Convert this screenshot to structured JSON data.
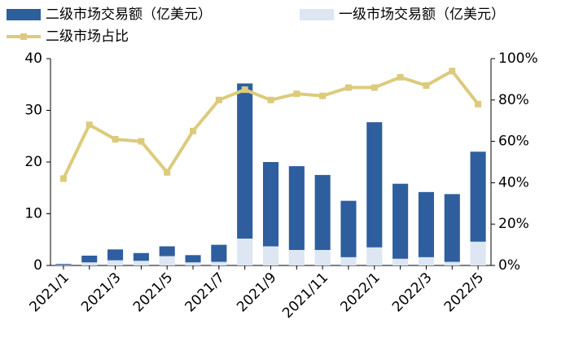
{
  "chart_data": {
    "type": "bar_line",
    "categories": [
      "2021/1",
      null,
      "2021/3",
      null,
      "2021/5",
      null,
      "2021/7",
      null,
      "2021/9",
      null,
      "2021/11",
      null,
      "2022/1",
      null,
      "2022/3",
      null,
      "2022/5"
    ],
    "series": [
      {
        "name": "二级市场交易额（亿美元）",
        "type": "bar",
        "color": "#2e5e9e",
        "values": [
          0.2,
          1.3,
          2.1,
          1.5,
          1.9,
          1.4,
          3.3,
          30.0,
          16.3,
          16.2,
          14.5,
          10.9,
          24.2,
          14.5,
          12.6,
          13.1,
          17.4
        ]
      },
      {
        "name": "一级市场交易额（亿美元）",
        "type": "bar",
        "color": "#dde6f2",
        "values": [
          0.1,
          0.6,
          1.0,
          0.9,
          1.8,
          0.6,
          0.7,
          5.2,
          3.7,
          3.0,
          3.0,
          1.6,
          3.5,
          1.3,
          1.6,
          0.7,
          4.6
        ]
      },
      {
        "name": "二级市场占比",
        "type": "line",
        "axis": "y2",
        "color": "#dccb7c",
        "values": [
          42,
          68,
          61,
          60,
          45,
          65,
          80,
          85,
          80,
          83,
          82,
          86,
          86,
          91,
          87,
          94,
          78
        ]
      }
    ],
    "ylim": [
      0,
      40
    ],
    "yticks": [
      0,
      10,
      20,
      30,
      40
    ],
    "y2lim": [
      0,
      100
    ],
    "y2ticks": [
      {
        "value": 0,
        "label": "0%"
      },
      {
        "value": 20,
        "label": "20%"
      },
      {
        "value": 40,
        "label": "40%"
      },
      {
        "value": 60,
        "label": "60%"
      },
      {
        "value": 80,
        "label": "80%"
      },
      {
        "value": 100,
        "label": "100%"
      }
    ]
  }
}
